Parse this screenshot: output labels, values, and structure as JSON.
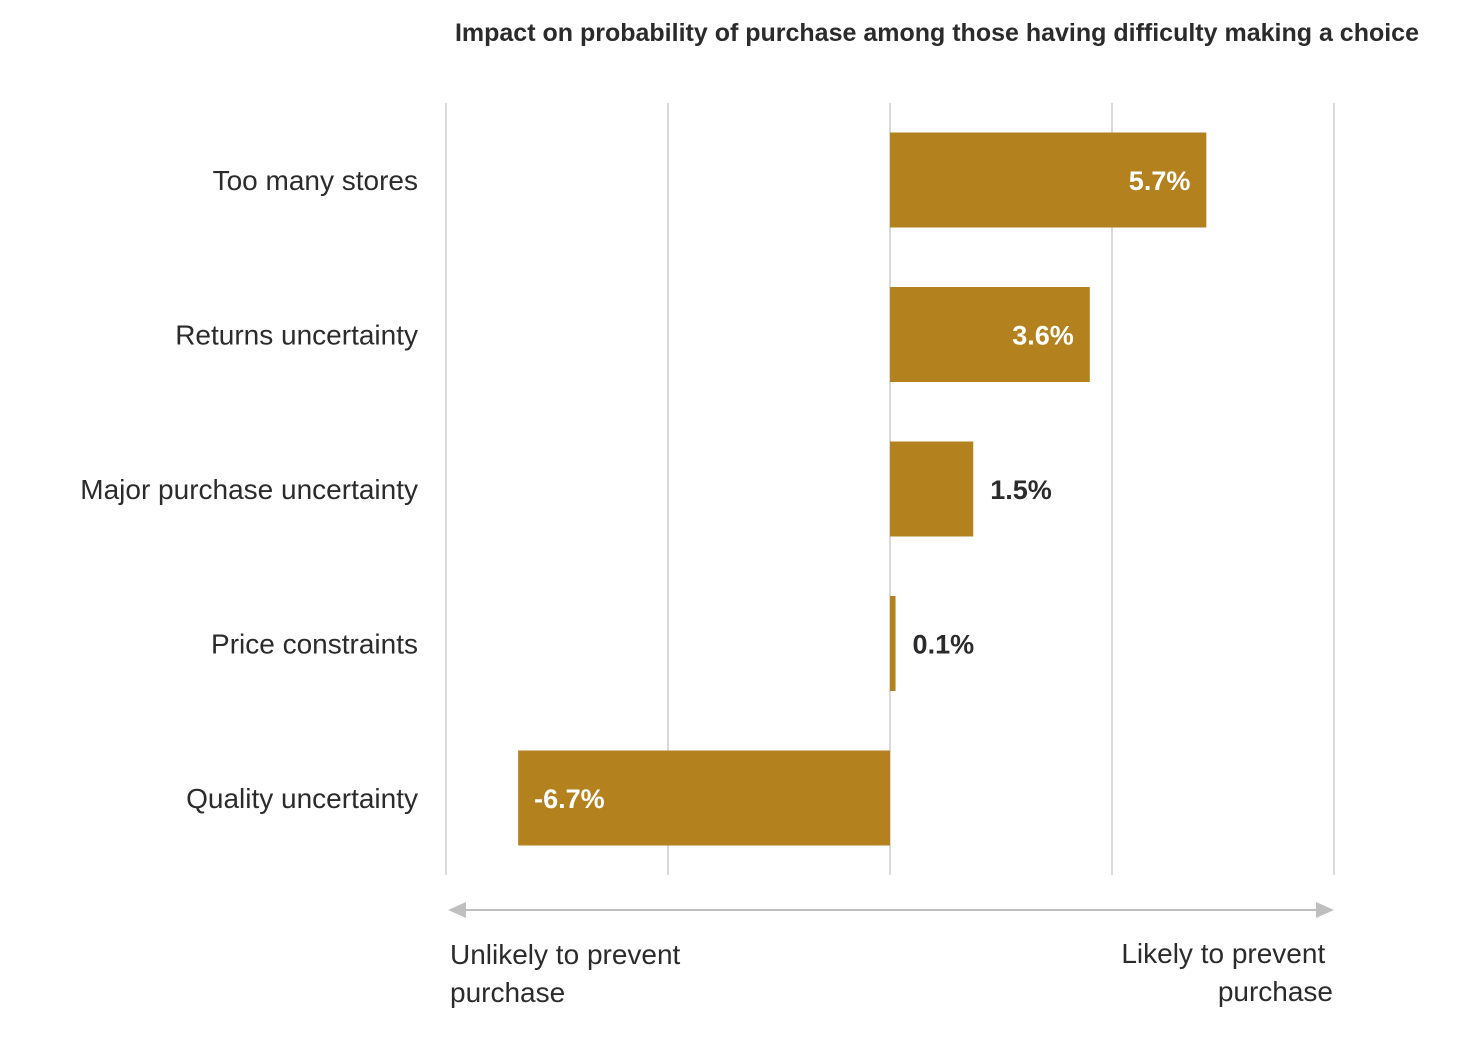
{
  "chart_data": {
    "type": "bar",
    "orientation": "horizontal",
    "title": "Impact on probability of purchase among those having difficulty making a choice",
    "categories": [
      "Too many stores",
      "Returns uncertainty",
      "Major purchase uncertainty",
      "Price constraints",
      "Quality uncertainty"
    ],
    "values": [
      5.7,
      3.6,
      1.5,
      0.1,
      -6.7
    ],
    "value_labels": [
      "5.7%",
      "3.6%",
      "1.5%",
      "0.1%",
      "-6.7%"
    ],
    "xlim": [
      -8,
      8
    ],
    "gridlines_at": [
      -8,
      -4,
      0,
      4,
      8
    ],
    "grid": true,
    "axis_annotations": {
      "left": [
        "Unlikely to prevent",
        "purchase"
      ],
      "right": [
        "Likely to prevent",
        "purchase"
      ]
    },
    "colors": {
      "bar": "#b3821f",
      "grid": "#d9d9d9",
      "arrow": "#bfbfbf",
      "label_inside": "#ffffff",
      "label_outside": "#2b2b2b"
    }
  }
}
